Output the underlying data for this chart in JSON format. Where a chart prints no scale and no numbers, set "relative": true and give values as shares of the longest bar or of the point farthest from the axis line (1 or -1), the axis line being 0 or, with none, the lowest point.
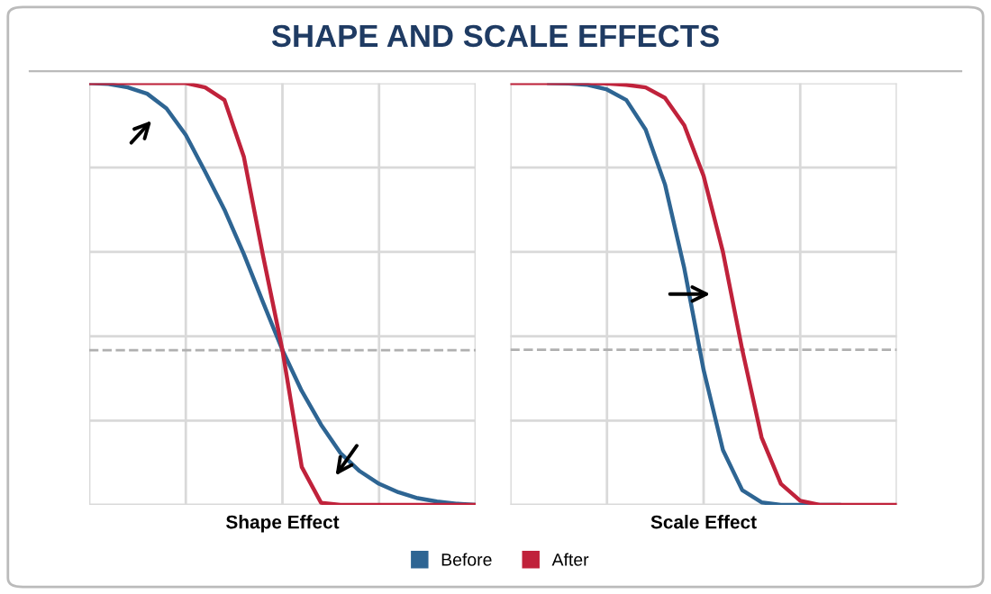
{
  "chart_data": [
    {
      "type": "line",
      "title": "SHAPE AND SCALE EFFECTS",
      "xlabel": "Shape Effect",
      "relative": true,
      "grid": true,
      "legend": "bottom",
      "tick_labels": false,
      "categories": [
        null,
        null,
        null,
        null,
        null,
        null,
        null,
        null,
        null,
        null,
        null,
        null,
        null,
        null,
        null,
        null,
        null,
        null,
        null,
        null,
        null
      ],
      "series": [
        {
          "name": "Before",
          "color": "#2e6593",
          "values": [
            1.0,
            0.998,
            0.99,
            0.975,
            0.94,
            0.877,
            0.79,
            0.7,
            0.595,
            0.48,
            0.367,
            0.27,
            0.19,
            0.123,
            0.08,
            0.05,
            0.03,
            0.016,
            0.008,
            0.003,
            0.0
          ]
        },
        {
          "name": "After",
          "color": "#c0223b",
          "values": [
            1.0,
            1.0,
            1.0,
            1.0,
            1.0,
            1.0,
            0.99,
            0.96,
            0.826,
            0.59,
            0.367,
            0.09,
            0.005,
            0.0,
            0.0,
            0.0,
            0.0,
            0.0,
            0.0,
            0.0,
            0.0
          ]
        },
        {
          "color": "#b0b0b0",
          "line_style": "dashed",
          "values": [
            0.367,
            0.367,
            0.367,
            0.367,
            0.367,
            0.367,
            0.367,
            0.367,
            0.367,
            0.367,
            0.367,
            0.367,
            0.367,
            0.367,
            0.367,
            0.367,
            0.367,
            0.367,
            0.367,
            0.367,
            0.367
          ]
        }
      ]
    },
    {
      "type": "line",
      "xlabel": "Scale Effect",
      "relative": true,
      "grid": true,
      "tick_labels": false,
      "categories": [
        null,
        null,
        null,
        null,
        null,
        null,
        null,
        null,
        null,
        null,
        null,
        null,
        null,
        null,
        null,
        null,
        null,
        null,
        null,
        null,
        null
      ],
      "series": [
        {
          "color": "#2e6593",
          "values": [
            null,
            null,
            1.0,
            0.999,
            0.996,
            0.985,
            0.96,
            0.89,
            0.76,
            0.561,
            0.32,
            0.13,
            0.035,
            0.006,
            0.0,
            0.0,
            0.0,
            0.0,
            null,
            null,
            null
          ]
        },
        {
          "color": "#c0223b",
          "values": [
            1.0,
            1.0,
            1.0,
            1.0,
            1.0,
            0.999,
            0.996,
            0.99,
            0.965,
            0.9,
            0.78,
            0.6,
            0.368,
            0.16,
            0.05,
            0.01,
            0.0,
            0.0,
            0.0,
            0.0,
            0.0
          ]
        },
        {
          "color": "#b0b0b0",
          "line_style": "dashed",
          "values": [
            0.368,
            0.368,
            0.368,
            0.368,
            0.368,
            0.368,
            0.368,
            0.368,
            0.368,
            0.368,
            0.368,
            0.368,
            0.368,
            0.368,
            0.368,
            0.368,
            0.368,
            0.368,
            0.368,
            0.368,
            0.368
          ]
        }
      ]
    }
  ]
}
